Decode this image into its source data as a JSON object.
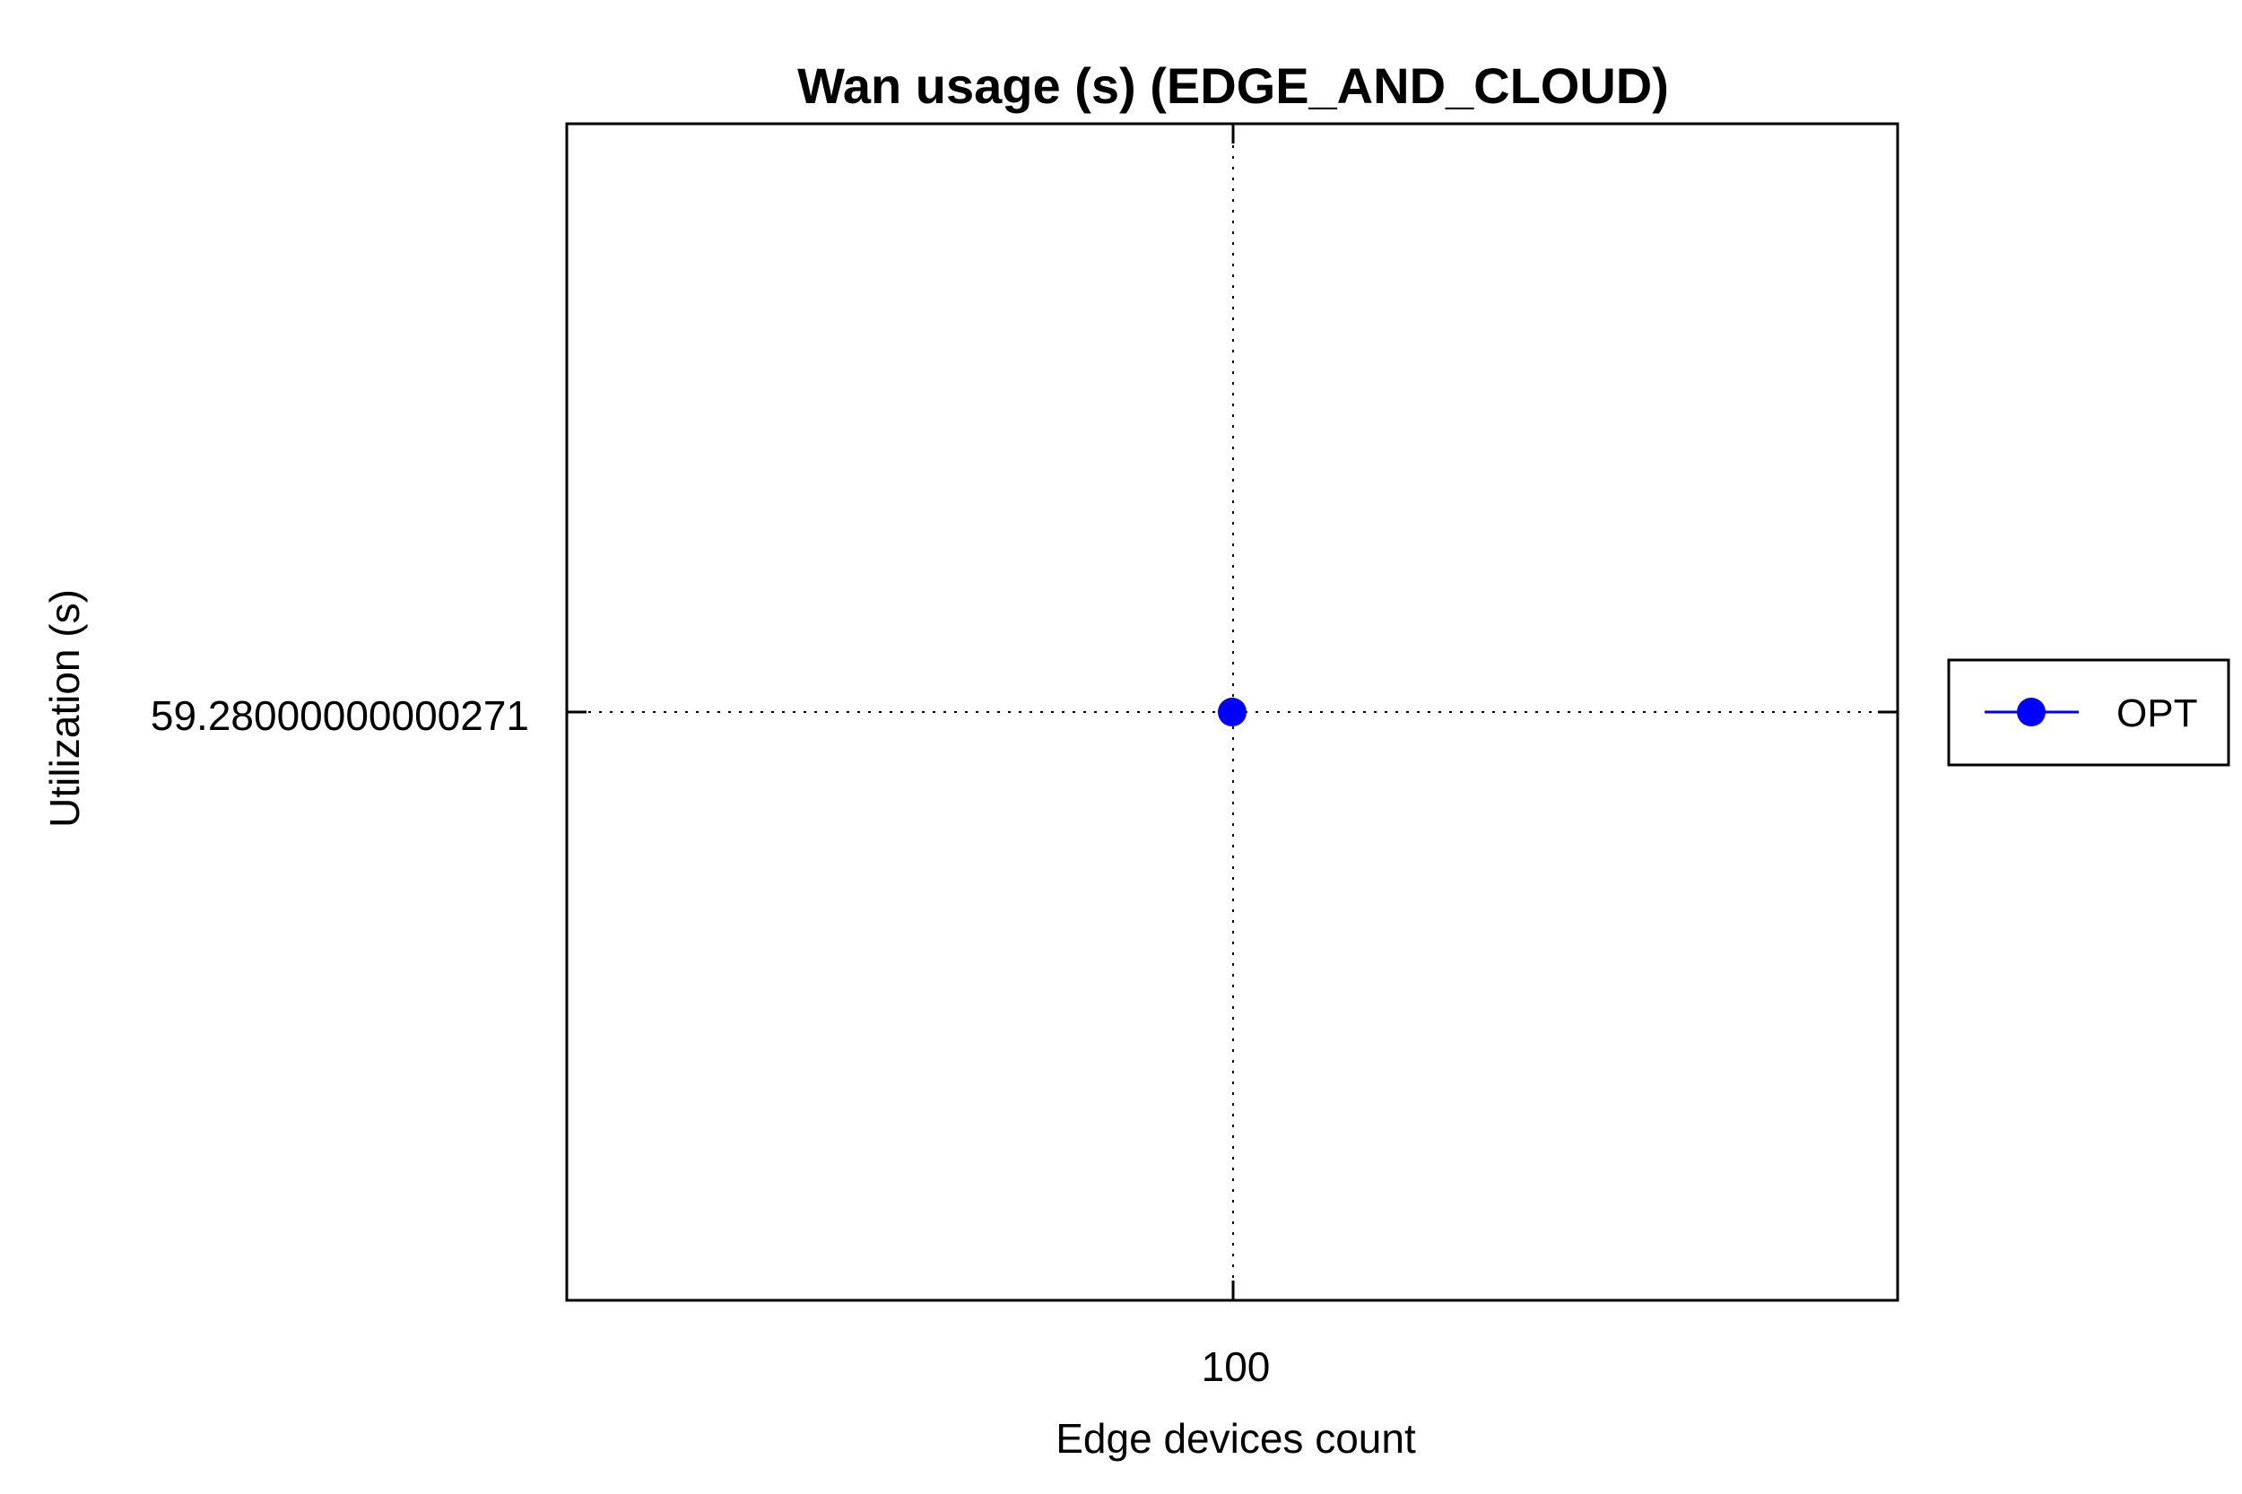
{
  "chart_data": {
    "type": "line",
    "title": "Wan usage (s) (EDGE_AND_CLOUD)",
    "xlabel": "Edge devices count",
    "ylabel": "Utilization (s)",
    "x_tick_labels": [
      "100"
    ],
    "y_tick_labels": [
      "59.28000000000271"
    ],
    "x": [
      100
    ],
    "series": [
      {
        "name": "OPT",
        "values": [
          59.28000000000271
        ],
        "color": "#0000ff",
        "marker": "circle"
      }
    ],
    "grid": true,
    "grid_style": "dotted",
    "legend_position": "right"
  }
}
